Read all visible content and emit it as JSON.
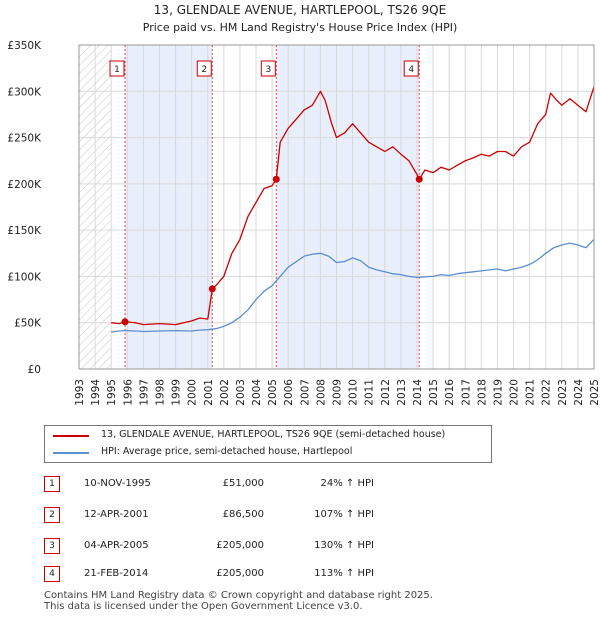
{
  "chart_data": {
    "type": "line",
    "title": "13, GLENDALE AVENUE, HARTLEPOOL, TS26 9QE",
    "subtitle": "Price paid vs. HM Land Registry's House Price Index (HPI)",
    "xlabel": "",
    "ylabel": "",
    "xlim": [
      1993,
      2025
    ],
    "ylim": [
      0,
      350000
    ],
    "y_ticks": [
      0,
      50000,
      100000,
      150000,
      200000,
      250000,
      300000,
      350000
    ],
    "y_tick_labels": [
      "£0",
      "£50K",
      "£100K",
      "£150K",
      "£200K",
      "£250K",
      "£300K",
      "£350K"
    ],
    "x_ticks": [
      1993,
      1994,
      1995,
      1996,
      1997,
      1998,
      1999,
      2000,
      2001,
      2002,
      2003,
      2004,
      2005,
      2006,
      2007,
      2008,
      2009,
      2010,
      2011,
      2012,
      2013,
      2014,
      2015,
      2016,
      2017,
      2018,
      2019,
      2020,
      2021,
      2022,
      2023,
      2024,
      2025
    ],
    "x_tick_labels": [
      "1993",
      "1994",
      "1995",
      "1996",
      "1997",
      "1998",
      "1999",
      "2000",
      "2001",
      "2002",
      "2003",
      "2004",
      "2005",
      "2006",
      "2007",
      "2008",
      "2009",
      "2010",
      "2011",
      "2012",
      "2013",
      "2014",
      "2015",
      "2016",
      "2017",
      "2018",
      "2019",
      "2020",
      "2021",
      "2022",
      "2023",
      "2024",
      "2025"
    ],
    "hatch_range": [
      1993,
      1995
    ],
    "shaded_ranges": [
      [
        1995.86,
        2001.28
      ],
      [
        2005.26,
        2014.14
      ]
    ],
    "series": [
      {
        "name": "13, GLENDALE AVENUE, HARTLEPOOL, TS26 9QE (semi-detached house)",
        "color": "#cc0000",
        "x": [
          1995.0,
          1995.5,
          1995.86,
          1996.5,
          1997,
          1998,
          1999,
          2000,
          2000.5,
          2001.0,
          2001.28,
          2001.5,
          2002,
          2002.5,
          2003,
          2003.5,
          2004,
          2004.5,
          2005.0,
          2005.26,
          2005.5,
          2006,
          2006.5,
          2007,
          2007.5,
          2008,
          2008.3,
          2008.7,
          2009,
          2009.5,
          2010,
          2010.5,
          2011,
          2011.5,
          2012,
          2012.5,
          2013,
          2013.5,
          2014.0,
          2014.14,
          2014.5,
          2015,
          2015.5,
          2016,
          2016.5,
          2017,
          2017.5,
          2018,
          2018.5,
          2019,
          2019.5,
          2020,
          2020.5,
          2021,
          2021.5,
          2022,
          2022.3,
          2022.7,
          2023,
          2023.5,
          2024,
          2024.5,
          2025
        ],
        "values": [
          50000,
          49000,
          51000,
          50000,
          48000,
          49000,
          48000,
          52000,
          55000,
          54000,
          86500,
          90000,
          100000,
          125000,
          140000,
          165000,
          180000,
          195000,
          198000,
          205000,
          245000,
          260000,
          270000,
          280000,
          285000,
          300000,
          290000,
          265000,
          250000,
          255000,
          265000,
          255000,
          245000,
          240000,
          235000,
          240000,
          232000,
          225000,
          210000,
          205000,
          215000,
          212000,
          218000,
          215000,
          220000,
          225000,
          228000,
          232000,
          230000,
          235000,
          235000,
          230000,
          240000,
          245000,
          265000,
          275000,
          298000,
          290000,
          285000,
          292000,
          285000,
          278000,
          305000
        ]
      },
      {
        "name": "HPI: Average price, semi-detached house, Hartlepool",
        "color": "#5b8fd0",
        "x": [
          1995.0,
          1995.5,
          1996,
          1996.5,
          1997,
          1998,
          1999,
          2000,
          2000.5,
          2001,
          2001.5,
          2002,
          2002.5,
          2003,
          2003.5,
          2004,
          2004.5,
          2005,
          2005.5,
          2006,
          2006.5,
          2007,
          2007.5,
          2008,
          2008.5,
          2009,
          2009.5,
          2010,
          2010.5,
          2011,
          2011.5,
          2012,
          2012.5,
          2013,
          2013.5,
          2014,
          2014.5,
          2015,
          2015.5,
          2016,
          2016.5,
          2017,
          2017.5,
          2018,
          2018.5,
          2019,
          2019.5,
          2020,
          2020.5,
          2021,
          2021.5,
          2022,
          2022.5,
          2023,
          2023.5,
          2024,
          2024.5,
          2025
        ],
        "values": [
          40000,
          41000,
          41500,
          41000,
          40500,
          41000,
          41500,
          41000,
          42000,
          42500,
          43500,
          46000,
          50000,
          56000,
          64000,
          75000,
          84000,
          90000,
          100000,
          110000,
          116000,
          122000,
          124000,
          125000,
          122000,
          115000,
          116000,
          120000,
          117000,
          110000,
          107000,
          105000,
          103000,
          102000,
          100000,
          99000,
          99500,
          100000,
          102000,
          101000,
          103000,
          104000,
          105000,
          106000,
          107000,
          108000,
          106000,
          108000,
          110000,
          113000,
          118000,
          125000,
          131000,
          134000,
          136000,
          134000,
          131000,
          140000
        ]
      }
    ],
    "markers": [
      {
        "label": "1",
        "x": 1995.86,
        "y": 51000
      },
      {
        "label": "2",
        "x": 2001.28,
        "y": 86500
      },
      {
        "label": "3",
        "x": 2005.26,
        "y": 205000
      },
      {
        "label": "4",
        "x": 2014.14,
        "y": 205000
      }
    ]
  },
  "legend": {
    "property_label": "13, GLENDALE AVENUE, HARTLEPOOL, TS26 9QE (semi-detached house)",
    "hpi_label": "HPI: Average price, semi-detached house, Hartlepool",
    "property_color": "#cc0000",
    "hpi_color": "#5b8fd0"
  },
  "transactions": [
    {
      "num": "1",
      "date": "10-NOV-1995",
      "price": "£51,000",
      "hpi": "24% ↑ HPI"
    },
    {
      "num": "2",
      "date": "12-APR-2001",
      "price": "£86,500",
      "hpi": "107% ↑ HPI"
    },
    {
      "num": "3",
      "date": "04-APR-2005",
      "price": "£205,000",
      "hpi": "130% ↑ HPI"
    },
    {
      "num": "4",
      "date": "21-FEB-2014",
      "price": "£205,000",
      "hpi": "113% ↑ HPI"
    }
  ],
  "footer": {
    "line1": "Contains HM Land Registry data © Crown copyright and database right 2025.",
    "line2": "This data is licensed under the Open Government Licence v3.0."
  }
}
